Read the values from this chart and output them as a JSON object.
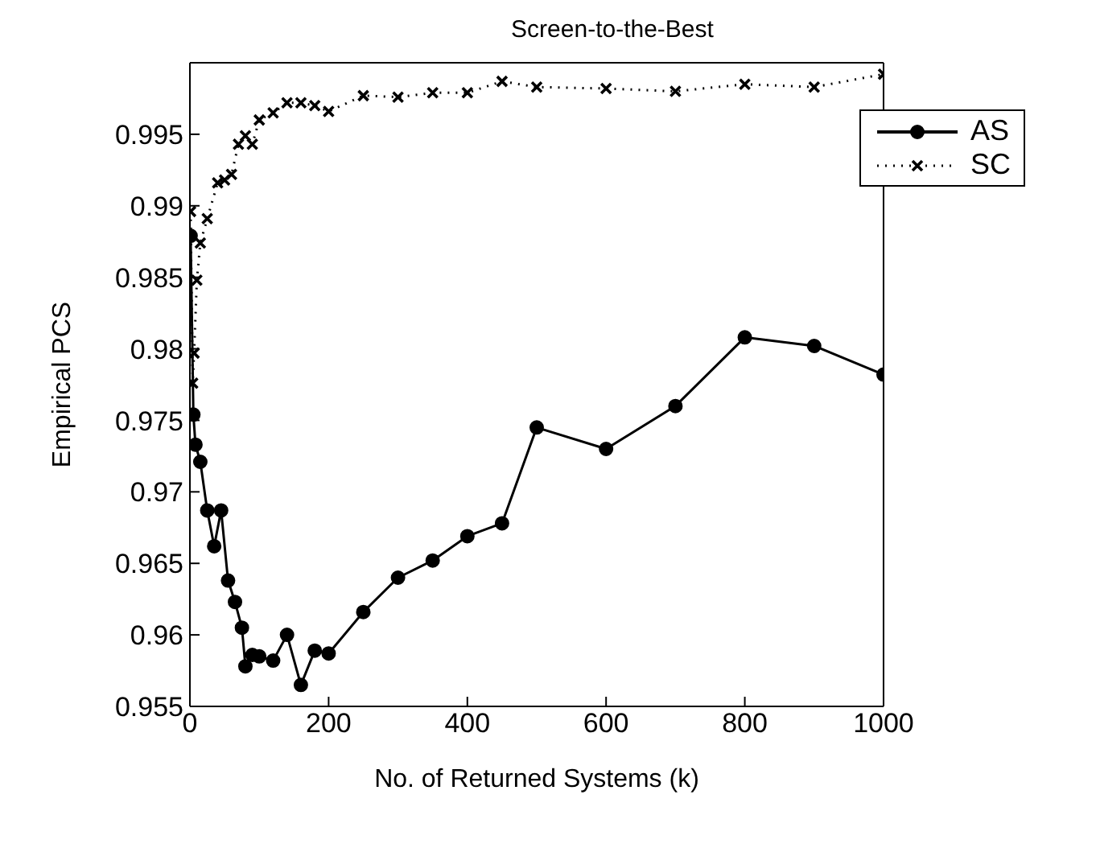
{
  "chart_data": {
    "type": "line",
    "title": "Screen-to-the-Best",
    "xlabel": "No. of Returned Systems (k)",
    "ylabel": "Empirical PCS",
    "xlim": [
      0,
      1000
    ],
    "xticks": [
      0,
      200,
      400,
      600,
      800,
      1000
    ],
    "ylim": [
      0.955,
      1
    ],
    "yticks": [
      0.955,
      0.96,
      0.965,
      0.97,
      0.975,
      0.98,
      0.985,
      0.99,
      0.995
    ],
    "grid": false,
    "legend": "top right",
    "series": [
      {
        "name": "AS",
        "color": "#000000",
        "marker": "circle",
        "line_style": "solid",
        "x": [
          1,
          5,
          8,
          15,
          25,
          35,
          45,
          55,
          65,
          75,
          80,
          90,
          100,
          120,
          140,
          160,
          180,
          200,
          250,
          300,
          350,
          400,
          450,
          500,
          600,
          700,
          800,
          900,
          1000
        ],
        "values": [
          0.9879,
          0.9754,
          0.9733,
          0.9721,
          0.9687,
          0.9662,
          0.9687,
          0.9638,
          0.9623,
          0.9605,
          0.9578,
          0.9586,
          0.9585,
          0.9582,
          0.96,
          0.9565,
          0.9589,
          0.9587,
          0.9616,
          0.964,
          0.9652,
          0.9669,
          0.9678,
          0.9745,
          0.973,
          0.976,
          0.9808,
          0.9802,
          0.9782
        ]
      },
      {
        "name": "SC",
        "color": "#000000",
        "marker": "cross",
        "line_style": "dotted",
        "x": [
          1,
          4,
          6,
          10,
          15,
          25,
          40,
          50,
          60,
          70,
          80,
          90,
          100,
          120,
          140,
          160,
          180,
          200,
          250,
          300,
          350,
          400,
          450,
          500,
          600,
          700,
          800,
          900,
          1000
        ],
        "values": [
          0.9896,
          0.9776,
          0.9797,
          0.9848,
          0.9874,
          0.9891,
          0.9916,
          0.9918,
          0.9922,
          0.9943,
          0.9949,
          0.9943,
          0.996,
          0.9965,
          0.9972,
          0.9972,
          0.997,
          0.9966,
          0.9977,
          0.9976,
          0.9979,
          0.9979,
          0.9987,
          0.9983,
          0.9982,
          0.998,
          0.9985,
          0.9983,
          0.9992
        ]
      }
    ]
  }
}
